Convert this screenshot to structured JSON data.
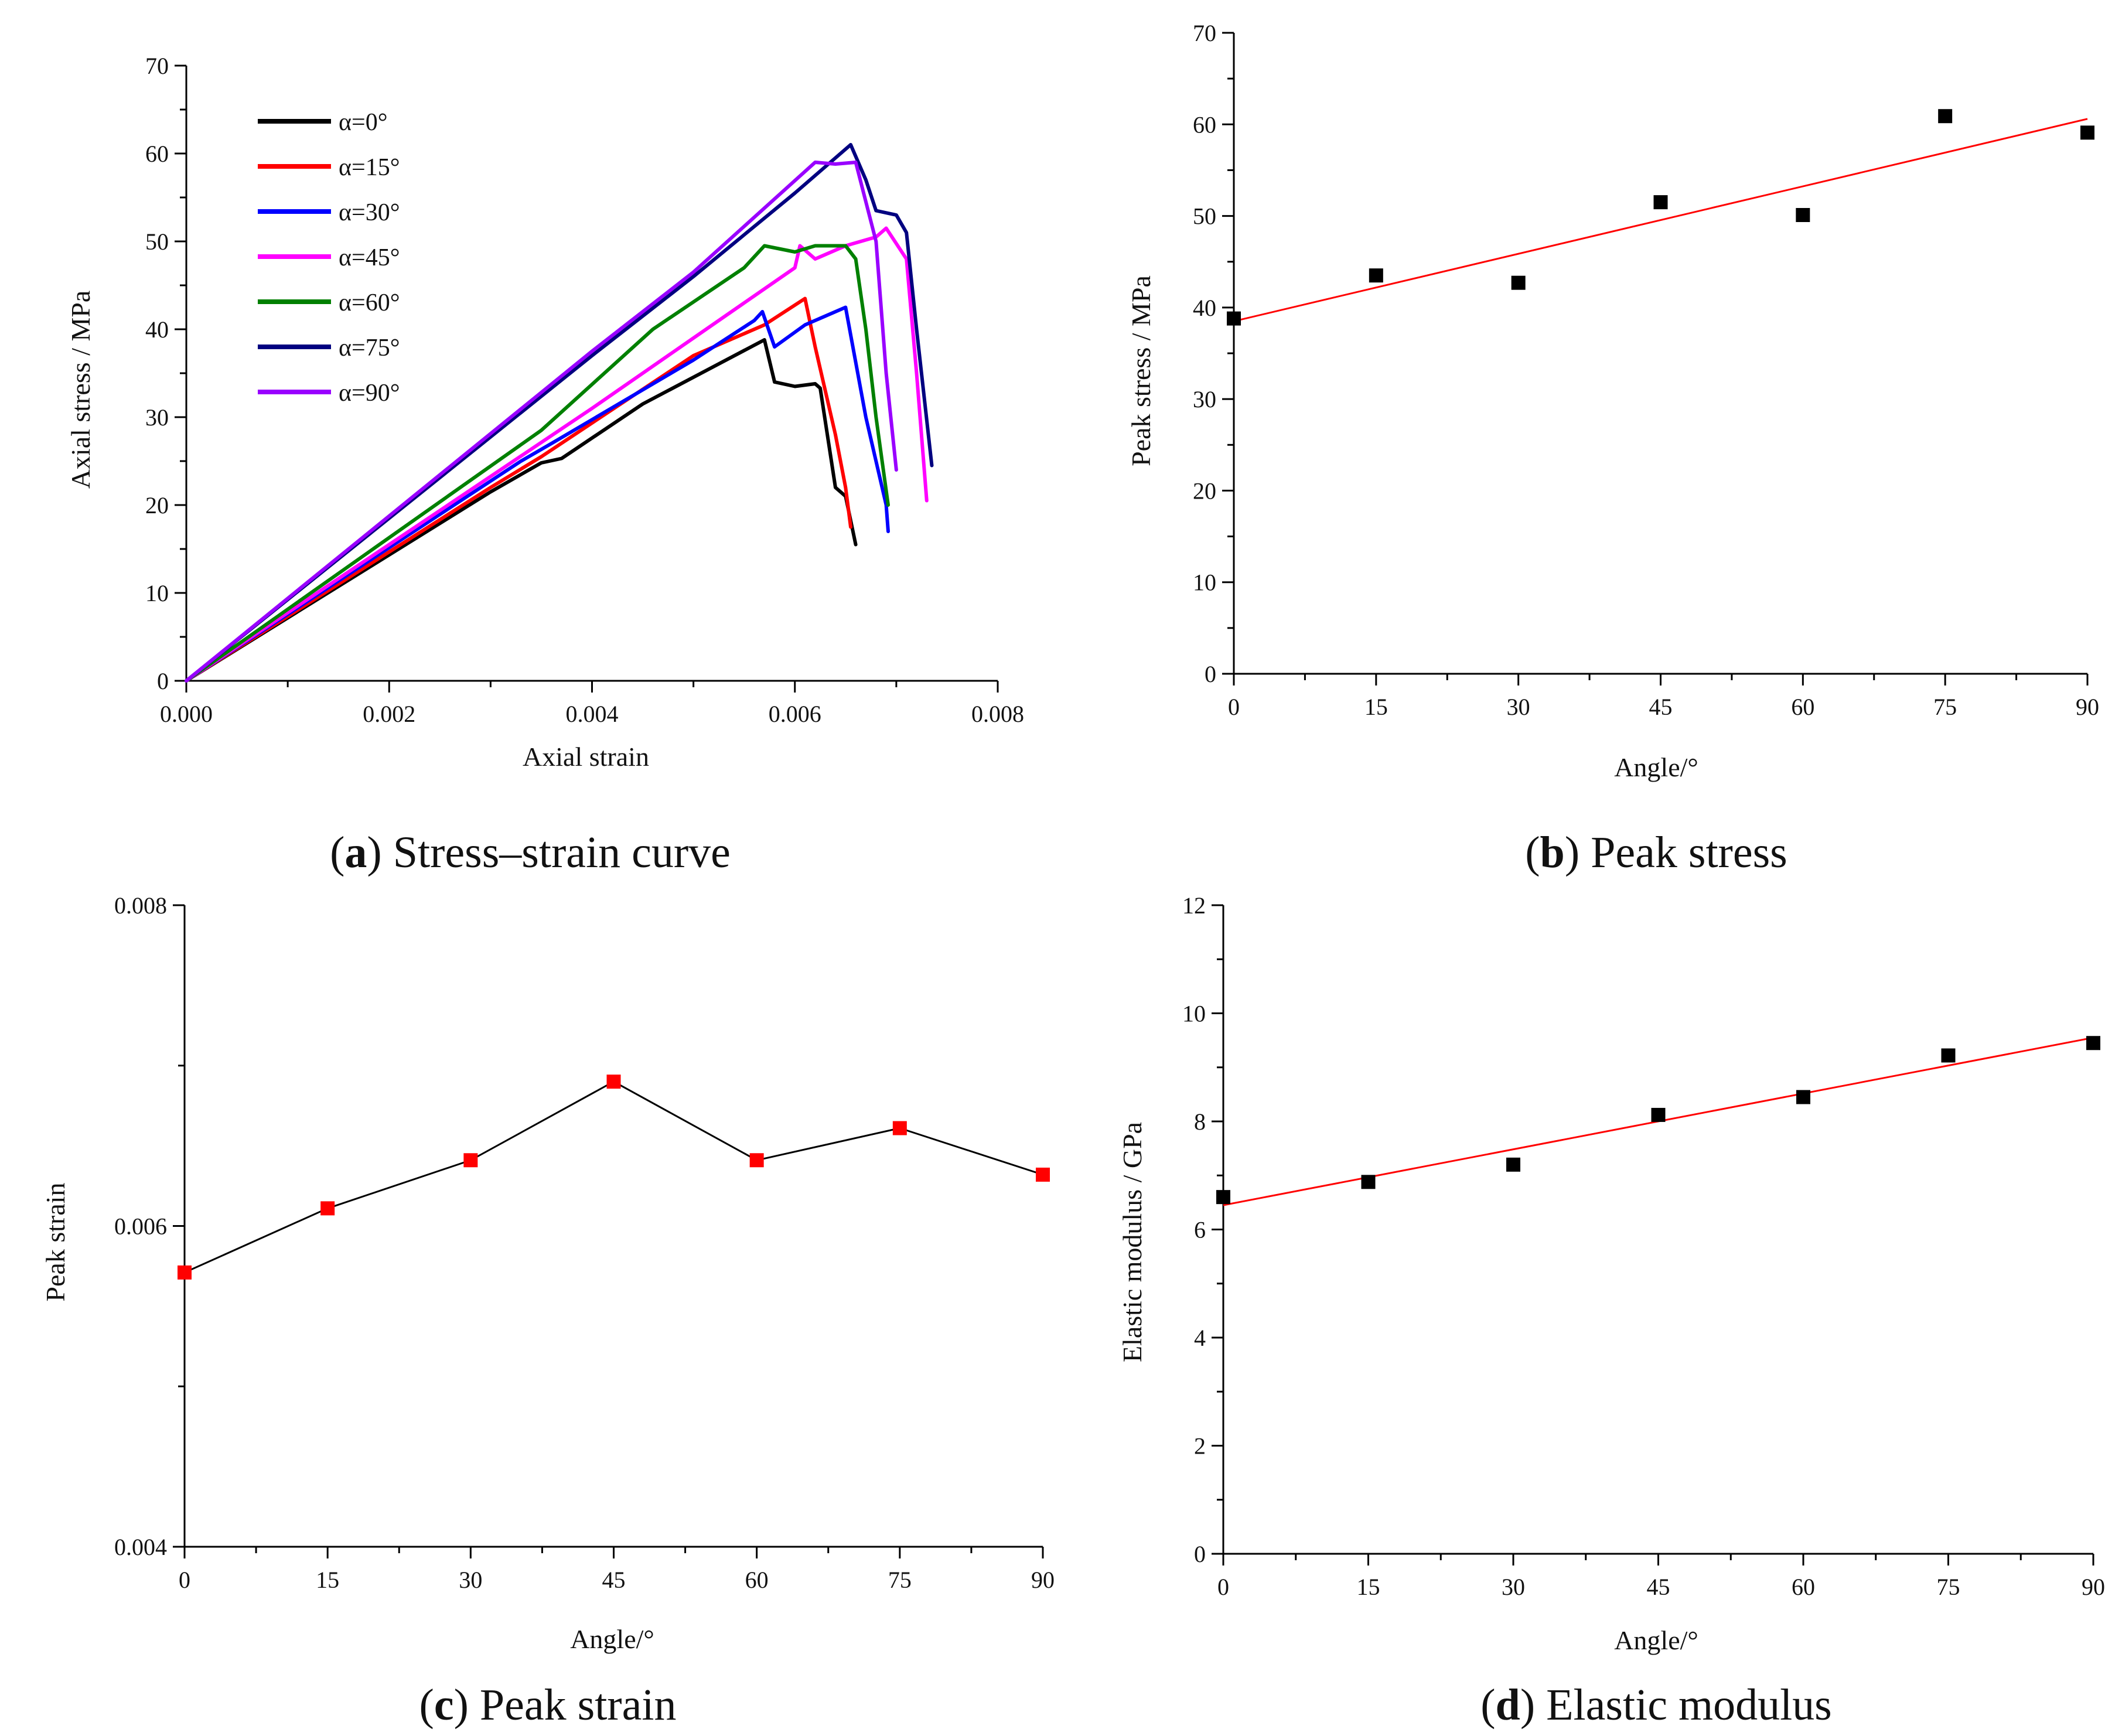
{
  "chart_data": [
    {
      "id": "a",
      "type": "line",
      "caption_letter": "a",
      "caption_text": ") Stress–strain curve",
      "xlabel": "Axial strain",
      "ylabel": "Axial stress / MPa",
      "xlim": [
        0,
        0.008
      ],
      "ylim": [
        0,
        70
      ],
      "xticks": [
        "0.000",
        "0.002",
        "0.004",
        "0.006",
        "0.008"
      ],
      "xtick_values": [
        0,
        0.002,
        0.004,
        0.006,
        0.008
      ],
      "yticks": [
        "0",
        "10",
        "20",
        "30",
        "40",
        "50",
        "60",
        "70"
      ],
      "ytick_values": [
        0,
        10,
        20,
        30,
        40,
        50,
        60,
        70
      ],
      "legend_position": "top-left",
      "series": [
        {
          "name": "α=0°",
          "color": "#000000",
          "points": [
            [
              0,
              0
            ],
            [
              0.003,
              21.5
            ],
            [
              0.0035,
              24.8
            ],
            [
              0.0037,
              25.3
            ],
            [
              0.0045,
              31.5
            ],
            [
              0.0057,
              38.8
            ],
            [
              0.0058,
              34.0
            ],
            [
              0.006,
              33.5
            ],
            [
              0.0062,
              33.8
            ],
            [
              0.00625,
              33.3
            ],
            [
              0.0064,
              22.0
            ],
            [
              0.0065,
              21.0
            ],
            [
              0.0066,
              15.5
            ]
          ]
        },
        {
          "name": "α=15°",
          "color": "#ff0000",
          "points": [
            [
              0,
              0
            ],
            [
              0.003,
              22.0
            ],
            [
              0.0035,
              25.5
            ],
            [
              0.005,
              37.0
            ],
            [
              0.0057,
              40.5
            ],
            [
              0.0061,
              43.5
            ],
            [
              0.0062,
              38.0
            ],
            [
              0.0064,
              28.0
            ],
            [
              0.0065,
              22.0
            ],
            [
              0.00655,
              17.5
            ]
          ]
        },
        {
          "name": "α=30°",
          "color": "#0000ff",
          "points": [
            [
              0,
              0
            ],
            [
              0.0033,
              25.0
            ],
            [
              0.0036,
              27.0
            ],
            [
              0.005,
              36.5
            ],
            [
              0.0056,
              41.0
            ],
            [
              0.00568,
              42.0
            ],
            [
              0.0058,
              38.0
            ],
            [
              0.0061,
              40.5
            ],
            [
              0.0065,
              42.5
            ],
            [
              0.0067,
              30.0
            ],
            [
              0.0069,
              20.0
            ],
            [
              0.00692,
              17.0
            ]
          ]
        },
        {
          "name": "α=45°",
          "color": "#ff00ff",
          "points": [
            [
              0,
              0
            ],
            [
              0.004,
              31.0
            ],
            [
              0.005,
              39.0
            ],
            [
              0.006,
              47.0
            ],
            [
              0.00605,
              49.5
            ],
            [
              0.0062,
              48.0
            ],
            [
              0.0065,
              49.5
            ],
            [
              0.0068,
              50.5
            ],
            [
              0.0069,
              51.5
            ],
            [
              0.0071,
              48.0
            ],
            [
              0.0072,
              35.0
            ],
            [
              0.0073,
              20.5
            ]
          ]
        },
        {
          "name": "α=60°",
          "color": "#008000",
          "points": [
            [
              0,
              0
            ],
            [
              0.0035,
              28.5
            ],
            [
              0.0046,
              40.0
            ],
            [
              0.0055,
              47.0
            ],
            [
              0.0057,
              49.5
            ],
            [
              0.006,
              48.8
            ],
            [
              0.0062,
              49.5
            ],
            [
              0.0065,
              49.5
            ],
            [
              0.0066,
              48.0
            ],
            [
              0.0067,
              40.0
            ],
            [
              0.0068,
              30.0
            ],
            [
              0.00692,
              20.0
            ]
          ]
        },
        {
          "name": "α=75°",
          "color": "#000080",
          "points": [
            [
              0,
              0
            ],
            [
              0.004,
              37.0
            ],
            [
              0.005,
              46.0
            ],
            [
              0.006,
              55.5
            ],
            [
              0.00655,
              61.0
            ],
            [
              0.0067,
              57.0
            ],
            [
              0.0068,
              53.5
            ],
            [
              0.007,
              53.0
            ],
            [
              0.0071,
              51.0
            ],
            [
              0.0072,
              40.0
            ],
            [
              0.00735,
              24.5
            ]
          ]
        },
        {
          "name": "α=90°",
          "color": "#9900ff",
          "points": [
            [
              0,
              0
            ],
            [
              0.004,
              37.5
            ],
            [
              0.005,
              46.5
            ],
            [
              0.0062,
              59.0
            ],
            [
              0.0064,
              58.8
            ],
            [
              0.0066,
              59.0
            ],
            [
              0.0068,
              50.0
            ],
            [
              0.0069,
              35.0
            ],
            [
              0.007,
              24.0
            ]
          ]
        }
      ]
    },
    {
      "id": "b",
      "type": "scatter",
      "caption_letter": "b",
      "caption_text": ") Peak stress",
      "xlabel": "Angle/°",
      "ylabel": "Peak stress / MPa",
      "xlim": [
        0,
        90
      ],
      "ylim": [
        0,
        70
      ],
      "xticks": [
        "0",
        "15",
        "30",
        "45",
        "60",
        "75",
        "90"
      ],
      "xtick_values": [
        0,
        15,
        30,
        45,
        60,
        75,
        90
      ],
      "yticks": [
        "0",
        "10",
        "20",
        "30",
        "40",
        "50",
        "60",
        "70"
      ],
      "ytick_values": [
        0,
        10,
        20,
        30,
        40,
        50,
        60,
        70
      ],
      "marker_color": "#000000",
      "x": [
        0,
        15,
        30,
        45,
        60,
        75,
        90
      ],
      "y": [
        38.8,
        43.5,
        42.7,
        51.5,
        50.1,
        60.9,
        59.1
      ],
      "fit_line": {
        "color": "#ff0000",
        "x": [
          0,
          90
        ],
        "y": [
          38.5,
          60.6
        ]
      }
    },
    {
      "id": "c",
      "type": "line",
      "caption_letter": "c",
      "caption_text": ") Peak strain",
      "xlabel": "Angle/°",
      "ylabel": "Peak strain",
      "xlim": [
        0,
        90
      ],
      "ylim": [
        0.004,
        0.008
      ],
      "xticks": [
        "0",
        "15",
        "30",
        "45",
        "60",
        "75",
        "90"
      ],
      "xtick_values": [
        0,
        15,
        30,
        45,
        60,
        75,
        90
      ],
      "yticks": [
        "0.004",
        "0.006",
        "0.008"
      ],
      "ytick_values": [
        0.004,
        0.006,
        0.008
      ],
      "line_color": "#000000",
      "marker_color": "#ff0000",
      "x": [
        0,
        15,
        30,
        45,
        60,
        75,
        90
      ],
      "y": [
        0.00571,
        0.00611,
        0.00641,
        0.0069,
        0.00641,
        0.00661,
        0.00632
      ]
    },
    {
      "id": "d",
      "type": "scatter",
      "caption_letter": "d",
      "caption_text": ") Elastic modulus",
      "xlabel": "Angle/°",
      "ylabel": "Elastic modulus / GPa",
      "xlim": [
        0,
        90
      ],
      "ylim": [
        0,
        12
      ],
      "xticks": [
        "0",
        "15",
        "30",
        "45",
        "60",
        "75",
        "90"
      ],
      "xtick_values": [
        0,
        15,
        30,
        45,
        60,
        75,
        90
      ],
      "yticks": [
        "0",
        "2",
        "4",
        "6",
        "8",
        "10",
        "12"
      ],
      "ytick_values": [
        0,
        2,
        4,
        6,
        8,
        10,
        12
      ],
      "marker_color": "#000000",
      "x": [
        0,
        15,
        30,
        45,
        60,
        75,
        90
      ],
      "y": [
        6.6,
        6.88,
        7.2,
        8.12,
        8.45,
        9.22,
        9.45
      ],
      "fit_line": {
        "color": "#ff0000",
        "x": [
          0,
          90
        ],
        "y": [
          6.45,
          9.55
        ]
      }
    }
  ]
}
